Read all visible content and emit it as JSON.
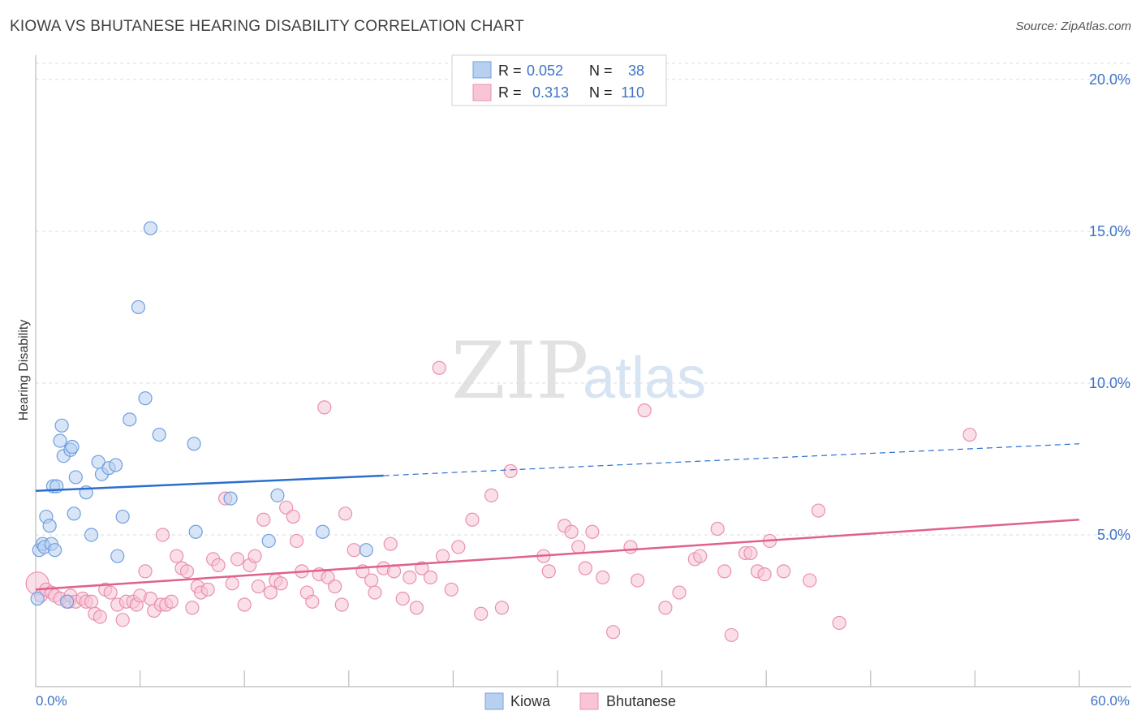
{
  "header": {
    "title": "KIOWA VS BHUTANESE HEARING DISABILITY CORRELATION CHART",
    "source": "Source: ZipAtlas.com"
  },
  "watermark": {
    "zip": "ZIP",
    "atlas": "atlas"
  },
  "legend_top": {
    "rows": [
      {
        "r_label": "R =",
        "r_value": "0.052",
        "n_label": "N =",
        "n_value": "38"
      },
      {
        "r_label": "R =",
        "r_value": "0.313",
        "n_label": "N =",
        "n_value": "110"
      }
    ]
  },
  "colors": {
    "kiowa_fill": "#b8d0f0",
    "kiowa_stroke": "#6f9fe0",
    "kiowa_line": "#2a6fd0",
    "bhutanese_fill": "#f8c4d6",
    "bhutanese_stroke": "#e890b0",
    "bhutanese_line": "#e06090",
    "accent_text": "#3d72c4"
  },
  "chart_data": {
    "type": "scatter",
    "title": "KIOWA VS BHUTANESE HEARING DISABILITY CORRELATION CHART",
    "xlabel": "",
    "ylabel": "Hearing Disability",
    "xlim": [
      0,
      60
    ],
    "ylim": [
      0,
      20.8
    ],
    "x_tick_labels": [
      "0.0%",
      "60.0%"
    ],
    "y_ticks": [
      5,
      10,
      15,
      20
    ],
    "y_tick_labels": [
      "5.0%",
      "10.0%",
      "15.0%",
      "20.0%"
    ],
    "legend": [
      "Kiowa",
      "Bhutanese"
    ],
    "series": [
      {
        "name": "Kiowa",
        "r": 0.052,
        "n": 38,
        "trend": {
          "x0": 0,
          "y0": 6.45,
          "x1": 20,
          "y1": 6.95,
          "dash_x1": 60,
          "dash_y1": 8.0
        },
        "points": [
          [
            0.1,
            2.9
          ],
          [
            0.2,
            4.5
          ],
          [
            0.4,
            4.7
          ],
          [
            0.5,
            4.6
          ],
          [
            0.6,
            5.6
          ],
          [
            0.8,
            5.3
          ],
          [
            0.9,
            4.7
          ],
          [
            1.0,
            6.6
          ],
          [
            1.2,
            6.6
          ],
          [
            1.1,
            4.5
          ],
          [
            1.4,
            8.1
          ],
          [
            1.5,
            8.6
          ],
          [
            1.6,
            7.6
          ],
          [
            1.8,
            2.8
          ],
          [
            2.0,
            7.8
          ],
          [
            2.1,
            7.9
          ],
          [
            2.2,
            5.7
          ],
          [
            2.3,
            6.9
          ],
          [
            2.9,
            6.4
          ],
          [
            3.2,
            5.0
          ],
          [
            3.6,
            7.4
          ],
          [
            3.8,
            7.0
          ],
          [
            4.2,
            7.2
          ],
          [
            4.6,
            7.3
          ],
          [
            4.7,
            4.3
          ],
          [
            5.0,
            5.6
          ],
          [
            5.4,
            8.8
          ],
          [
            5.9,
            12.5
          ],
          [
            6.3,
            9.5
          ],
          [
            6.6,
            15.1
          ],
          [
            7.1,
            8.3
          ],
          [
            9.1,
            8.0
          ],
          [
            9.2,
            5.1
          ],
          [
            11.2,
            6.2
          ],
          [
            13.4,
            4.8
          ],
          [
            13.9,
            6.3
          ],
          [
            16.5,
            5.1
          ],
          [
            19.0,
            4.5
          ]
        ]
      },
      {
        "name": "Bhutanese",
        "r": 0.313,
        "n": 110,
        "trend": {
          "x0": 0,
          "y0": 3.2,
          "x1": 60,
          "y1": 5.5
        },
        "points": [
          [
            0.1,
            3.4
          ],
          [
            0.3,
            3.0
          ],
          [
            0.6,
            3.2
          ],
          [
            0.9,
            3.1
          ],
          [
            1.1,
            3.0
          ],
          [
            1.4,
            2.9
          ],
          [
            1.9,
            2.8
          ],
          [
            2.0,
            3.0
          ],
          [
            2.3,
            2.8
          ],
          [
            2.7,
            2.9
          ],
          [
            2.9,
            2.8
          ],
          [
            3.2,
            2.8
          ],
          [
            3.4,
            2.4
          ],
          [
            3.7,
            2.3
          ],
          [
            4.0,
            3.2
          ],
          [
            4.3,
            3.1
          ],
          [
            4.7,
            2.7
          ],
          [
            5.0,
            2.2
          ],
          [
            5.2,
            2.8
          ],
          [
            5.6,
            2.8
          ],
          [
            5.8,
            2.7
          ],
          [
            6.0,
            3.0
          ],
          [
            6.3,
            3.8
          ],
          [
            6.6,
            2.9
          ],
          [
            6.8,
            2.5
          ],
          [
            7.2,
            2.7
          ],
          [
            7.3,
            5.0
          ],
          [
            7.5,
            2.7
          ],
          [
            7.8,
            2.8
          ],
          [
            8.1,
            4.3
          ],
          [
            8.4,
            3.9
          ],
          [
            8.7,
            3.8
          ],
          [
            9.0,
            2.6
          ],
          [
            9.3,
            3.3
          ],
          [
            9.5,
            3.1
          ],
          [
            9.9,
            3.2
          ],
          [
            10.2,
            4.2
          ],
          [
            10.5,
            4.0
          ],
          [
            10.9,
            6.2
          ],
          [
            11.3,
            3.4
          ],
          [
            11.6,
            4.2
          ],
          [
            12.0,
            2.7
          ],
          [
            12.3,
            4.0
          ],
          [
            12.6,
            4.3
          ],
          [
            12.8,
            3.3
          ],
          [
            13.1,
            5.5
          ],
          [
            13.5,
            3.1
          ],
          [
            13.8,
            3.5
          ],
          [
            14.1,
            3.4
          ],
          [
            14.4,
            5.9
          ],
          [
            14.8,
            5.6
          ],
          [
            15.0,
            4.8
          ],
          [
            15.3,
            3.8
          ],
          [
            15.6,
            3.1
          ],
          [
            15.9,
            2.8
          ],
          [
            16.3,
            3.7
          ],
          [
            16.6,
            9.2
          ],
          [
            16.8,
            3.6
          ],
          [
            17.2,
            3.3
          ],
          [
            17.6,
            2.7
          ],
          [
            17.8,
            5.7
          ],
          [
            18.3,
            4.5
          ],
          [
            18.8,
            3.8
          ],
          [
            19.3,
            3.5
          ],
          [
            19.5,
            3.1
          ],
          [
            20.0,
            3.9
          ],
          [
            20.4,
            4.7
          ],
          [
            20.6,
            3.8
          ],
          [
            21.1,
            2.9
          ],
          [
            21.5,
            3.6
          ],
          [
            21.9,
            2.6
          ],
          [
            22.2,
            3.9
          ],
          [
            22.7,
            3.6
          ],
          [
            23.2,
            10.5
          ],
          [
            23.4,
            4.3
          ],
          [
            23.9,
            3.2
          ],
          [
            24.3,
            4.6
          ],
          [
            25.1,
            5.5
          ],
          [
            25.6,
            2.4
          ],
          [
            26.2,
            6.3
          ],
          [
            26.8,
            2.6
          ],
          [
            27.3,
            7.1
          ],
          [
            29.2,
            4.3
          ],
          [
            29.5,
            3.8
          ],
          [
            30.4,
            5.3
          ],
          [
            30.8,
            5.1
          ],
          [
            31.2,
            4.6
          ],
          [
            31.6,
            3.9
          ],
          [
            32.0,
            5.1
          ],
          [
            32.6,
            3.6
          ],
          [
            33.2,
            1.8
          ],
          [
            34.2,
            4.6
          ],
          [
            34.6,
            3.5
          ],
          [
            35.0,
            9.1
          ],
          [
            36.2,
            2.6
          ],
          [
            37.0,
            3.1
          ],
          [
            37.9,
            4.2
          ],
          [
            38.2,
            4.3
          ],
          [
            39.2,
            5.2
          ],
          [
            39.6,
            3.8
          ],
          [
            40.0,
            1.7
          ],
          [
            40.8,
            4.4
          ],
          [
            41.1,
            4.4
          ],
          [
            41.5,
            3.8
          ],
          [
            41.9,
            3.7
          ],
          [
            42.2,
            4.8
          ],
          [
            43.0,
            3.8
          ],
          [
            44.5,
            3.5
          ],
          [
            45.0,
            5.8
          ],
          [
            46.2,
            2.1
          ],
          [
            53.7,
            8.3
          ]
        ]
      }
    ]
  },
  "legend_bottom": {
    "items": [
      "Kiowa",
      "Bhutanese"
    ]
  }
}
